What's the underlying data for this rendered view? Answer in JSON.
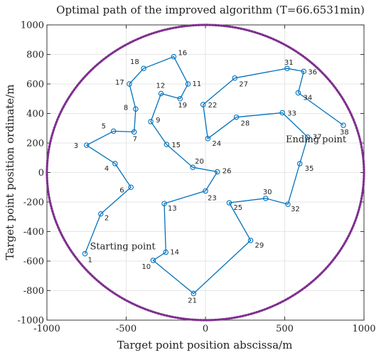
{
  "chart_data": {
    "type": "line",
    "title": "Optimal path of the improved algorithm (T=66.6531min)",
    "xlabel": "Target point position abscissa/m",
    "ylabel": "Target point position ordinate/m",
    "xlim": [
      -1000,
      1000
    ],
    "ylim": [
      -1000,
      1000
    ],
    "xticks": [
      -1000,
      -500,
      0,
      500,
      1000
    ],
    "yticks": [
      -1000,
      -800,
      -600,
      -400,
      -200,
      0,
      200,
      400,
      600,
      800,
      1000
    ],
    "grid": true,
    "colors": {
      "path": "#0072BD",
      "circle": "#7E2F8E"
    },
    "boundary_circle": {
      "center": [
        0,
        0
      ],
      "radius": 1000,
      "style": "dotted"
    },
    "annotations": {
      "start": "Starting point",
      "end": "Ending point"
    },
    "points": [
      {
        "label": "1",
        "x": -760,
        "y": -550
      },
      {
        "label": "2",
        "x": -660,
        "y": -280
      },
      {
        "label": "6",
        "x": -470,
        "y": -100
      },
      {
        "label": "4",
        "x": -570,
        "y": 60
      },
      {
        "label": "3",
        "x": -750,
        "y": 185
      },
      {
        "label": "5",
        "x": -580,
        "y": 280
      },
      {
        "label": "7",
        "x": -450,
        "y": 275
      },
      {
        "label": "8",
        "x": -440,
        "y": 430
      },
      {
        "label": "17",
        "x": -480,
        "y": 600
      },
      {
        "label": "18",
        "x": -390,
        "y": 705
      },
      {
        "label": "16",
        "x": -200,
        "y": 785
      },
      {
        "label": "11",
        "x": -110,
        "y": 600
      },
      {
        "label": "19",
        "x": -160,
        "y": 500
      },
      {
        "label": "12",
        "x": -280,
        "y": 535
      },
      {
        "label": "9",
        "x": -345,
        "y": 345
      },
      {
        "label": "15",
        "x": -245,
        "y": 190
      },
      {
        "label": "20",
        "x": -80,
        "y": 35
      },
      {
        "label": "26",
        "x": 75,
        "y": 5
      },
      {
        "label": "23",
        "x": 0,
        "y": -125
      },
      {
        "label": "13",
        "x": -260,
        "y": -210
      },
      {
        "label": "14",
        "x": -250,
        "y": -540
      },
      {
        "label": "10",
        "x": -330,
        "y": -595
      },
      {
        "label": "21",
        "x": -75,
        "y": -820
      },
      {
        "label": "29",
        "x": 285,
        "y": -460
      },
      {
        "label": "25",
        "x": 150,
        "y": -205
      },
      {
        "label": "30",
        "x": 380,
        "y": -175
      },
      {
        "label": "32",
        "x": 520,
        "y": -215
      },
      {
        "label": "35",
        "x": 595,
        "y": 60
      },
      {
        "label": "37",
        "x": 645,
        "y": 240
      },
      {
        "label": "33",
        "x": 485,
        "y": 405
      },
      {
        "label": "28",
        "x": 195,
        "y": 375
      },
      {
        "label": "24",
        "x": 15,
        "y": 230
      },
      {
        "label": "22",
        "x": -15,
        "y": 460
      },
      {
        "label": "27",
        "x": 185,
        "y": 640
      },
      {
        "label": "31",
        "x": 515,
        "y": 705
      },
      {
        "label": "36",
        "x": 620,
        "y": 685
      },
      {
        "label": "34",
        "x": 585,
        "y": 540
      },
      {
        "label": "38",
        "x": 870,
        "y": 320
      }
    ]
  }
}
